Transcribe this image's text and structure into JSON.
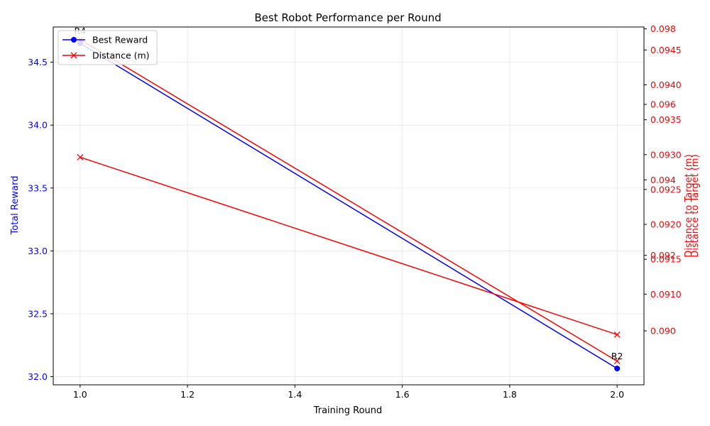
{
  "chart_data": {
    "type": "line",
    "title": "Best Robot Performance per Round",
    "xlabel": "Training Round",
    "ylabel_left": "Total Reward",
    "ylabel_right": [
      "Distance to Target (m)",
      "Distance to Target (m)"
    ],
    "xlim": [
      0.95,
      2.05
    ],
    "ylim_left": [
      31.935,
      34.78
    ],
    "ylim_right_a": [
      0.08857,
      0.09805
    ],
    "ylim_right_b": [
      0.0897,
      0.09483
    ],
    "x_ticks": [
      "1.0",
      "1.2",
      "1.4",
      "1.6",
      "1.8",
      "2.0"
    ],
    "y_ticks_left": [
      "32.0",
      "32.5",
      "33.0",
      "33.5",
      "34.0",
      "34.5"
    ],
    "y_ticks_right_a": [
      "0.090",
      "0.092",
      "0.094",
      "0.096",
      "0.098"
    ],
    "y_ticks_right_b": [
      "0.0910",
      "0.0915",
      "0.0920",
      "0.0925",
      "0.0930",
      "0.0935",
      "0.0940",
      "0.0945"
    ],
    "grid": true,
    "legend_position": "top-left",
    "series": [
      {
        "name": "Best Reward",
        "color": "#0000ff",
        "marker": "circle",
        "axis": "left",
        "x": [
          1.0,
          2.0
        ],
        "y": [
          34.65,
          32.065
        ]
      },
      {
        "name": "Distance (m)",
        "color": "#ff0000",
        "marker": "x",
        "axis": "right_b",
        "x": [
          1.0,
          2.0
        ],
        "y": [
          0.09465,
          0.09004
        ]
      },
      {
        "name": "",
        "color": "#ff0000",
        "marker": "x",
        "axis": "right_a",
        "x": [
          1.0,
          2.0
        ],
        "y": [
          0.0946,
          0.0899
        ]
      }
    ],
    "annotations": [
      {
        "text": "R4",
        "x": 1.0,
        "y": 34.65
      },
      {
        "text": "R2",
        "x": 2.0,
        "y": 32.065
      }
    ],
    "colors": {
      "left_axis": "#0000ff",
      "right_axis": "#ff0000",
      "grid": "#e6e6e6"
    }
  }
}
